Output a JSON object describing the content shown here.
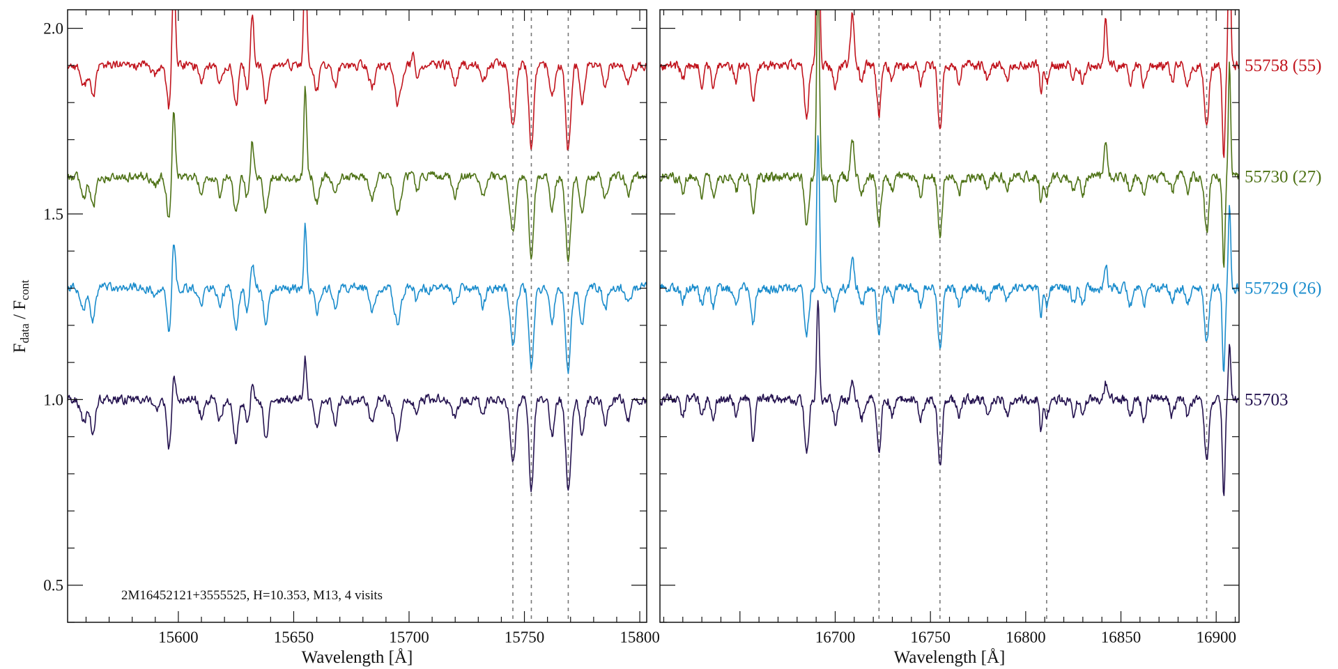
{
  "chart_data": {
    "type": "line",
    "ylabel": {
      "base": "F",
      "num_sub": "data",
      "sep": " / ",
      "den": "F",
      "den_sub": "cont"
    },
    "ylim": [
      0.4,
      2.05
    ],
    "yticks": [
      0.5,
      1.0,
      1.5,
      2.0
    ],
    "ytick_labels": [
      "0.5",
      "1.0",
      "1.5",
      "2.0"
    ],
    "annotation": "2M16452121+3555525,    H=10.353,    M13,    4 visits",
    "panels": [
      {
        "id": "left",
        "xlabel": "Wavelength [Å]",
        "xlim": [
          15552,
          15803
        ],
        "xticks": [
          15600,
          15650,
          15700,
          15750,
          15800
        ],
        "xtick_labels": [
          "15600",
          "15650",
          "15700",
          "15750",
          "15800"
        ],
        "ref_lines": [
          15745,
          15753,
          15769
        ]
      },
      {
        "id": "right",
        "xlabel": "Wavelength [Å]",
        "xlim": [
          16608,
          16912
        ],
        "xticks": [
          16700,
          16750,
          16800,
          16850,
          16900
        ],
        "xtick_labels": [
          "16700",
          "16750",
          "16800",
          "16850",
          "16900"
        ],
        "ref_lines": [
          16723,
          16755,
          16811,
          16895
        ]
      }
    ],
    "series": [
      {
        "name": "55758 (55)",
        "color": "#c1141d",
        "offset": 0.9,
        "seed": 11,
        "wiggle": 0.012,
        "depth_scale": 1.0,
        "emission_scale": 1.0,
        "emission_mode": "full"
      },
      {
        "name": "55730 (27)",
        "color": "#4e7216",
        "offset": 0.6,
        "seed": 23,
        "wiggle": 0.012,
        "depth_scale": 0.95,
        "emission_scale": 0.75,
        "emission_mode": "full"
      },
      {
        "name": "55729 (26)",
        "color": "#1a8ccc",
        "offset": 0.3,
        "seed": 37,
        "wiggle": 0.012,
        "depth_scale": 0.95,
        "emission_scale": 0.55,
        "emission_mode": "full"
      },
      {
        "name": "55703",
        "color": "#24124f",
        "offset": 0.0,
        "seed": 53,
        "wiggle": 0.012,
        "depth_scale": 1.05,
        "emission_scale": 0.35,
        "emission_mode": "full"
      }
    ],
    "features": {
      "absorption": [
        [
          15559,
          0.06,
          1.2
        ],
        [
          15563,
          0.09,
          1.0
        ],
        [
          15590,
          0.03,
          1.2
        ],
        [
          15596,
          0.12,
          1.0
        ],
        [
          15610,
          0.04,
          1.0
        ],
        [
          15618,
          0.05,
          1.0
        ],
        [
          15625,
          0.11,
          1.0
        ],
        [
          15630,
          0.06,
          1.0
        ],
        [
          15638,
          0.1,
          1.0
        ],
        [
          15660,
          0.07,
          1.0
        ],
        [
          15668,
          0.06,
          1.0
        ],
        [
          15684,
          0.06,
          1.2
        ],
        [
          15695,
          0.1,
          1.4
        ],
        [
          15703,
          0.05,
          1.0
        ],
        [
          15720,
          0.05,
          1.0
        ],
        [
          15732,
          0.05,
          1.0
        ],
        [
          15745,
          0.16,
          1.2
        ],
        [
          15753,
          0.23,
          1.0
        ],
        [
          15762,
          0.09,
          1.0
        ],
        [
          15769,
          0.23,
          1.1
        ],
        [
          15775,
          0.1,
          1.0
        ],
        [
          15785,
          0.06,
          1.0
        ],
        [
          15795,
          0.05,
          1.0
        ],
        [
          16620,
          0.04,
          1.0
        ],
        [
          16630,
          0.05,
          1.0
        ],
        [
          16636,
          0.06,
          1.0
        ],
        [
          16648,
          0.04,
          1.0
        ],
        [
          16657,
          0.1,
          1.0
        ],
        [
          16685,
          0.14,
          1.1
        ],
        [
          16700,
          0.06,
          1.0
        ],
        [
          16714,
          0.05,
          1.0
        ],
        [
          16723,
          0.13,
          1.1
        ],
        [
          16730,
          0.04,
          1.0
        ],
        [
          16745,
          0.05,
          1.0
        ],
        [
          16755,
          0.17,
          1.1
        ],
        [
          16765,
          0.05,
          1.0
        ],
        [
          16780,
          0.04,
          1.0
        ],
        [
          16790,
          0.04,
          1.0
        ],
        [
          16808,
          0.08,
          0.6
        ],
        [
          16811,
          0.05,
          1.0
        ],
        [
          16825,
          0.04,
          1.0
        ],
        [
          16830,
          0.05,
          1.0
        ],
        [
          16855,
          0.05,
          1.0
        ],
        [
          16862,
          0.05,
          1.0
        ],
        [
          16877,
          0.04,
          1.0
        ],
        [
          16885,
          0.05,
          1.0
        ],
        [
          16895,
          0.16,
          1.1
        ],
        [
          16904,
          0.25,
          0.7
        ]
      ],
      "emission": [
        [
          15598,
          0.26,
          0.7
        ],
        [
          15632,
          0.14,
          0.7
        ],
        [
          15655,
          0.32,
          0.6
        ],
        [
          15702,
          0.05,
          0.7
        ],
        [
          16691,
          0.75,
          0.7
        ],
        [
          16709,
          0.14,
          0.9
        ],
        [
          16842,
          0.12,
          0.8
        ],
        [
          16907,
          0.4,
          0.6
        ]
      ]
    }
  }
}
